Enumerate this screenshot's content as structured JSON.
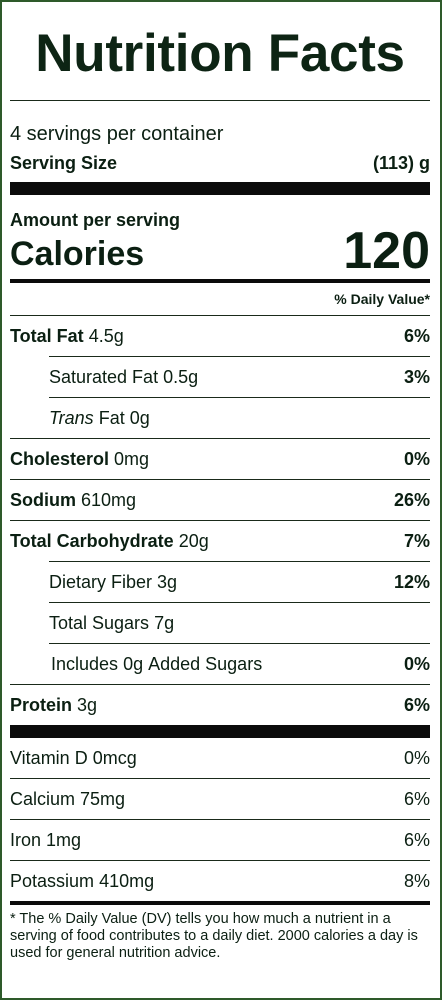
{
  "label": {
    "title": "Nutrition Facts",
    "servings_per_container": "4 servings per container",
    "serving_size_label": "Serving Size",
    "serving_size_value": "(113) g",
    "amount_per_serving": "Amount per serving",
    "calories_label": "Calories",
    "calories_value": "120",
    "daily_value_header": "% Daily Value*",
    "nutrients": {
      "total_fat": {
        "name": "Total Fat",
        "amount": "4.5g",
        "dv": "6%"
      },
      "saturated_fat": {
        "name": "Saturated Fat",
        "amount": "0.5g",
        "dv": "3%"
      },
      "trans_fat": {
        "name_italic": "Trans",
        "name": "Fat",
        "amount": "0g",
        "dv": ""
      },
      "cholesterol": {
        "name": "Cholesterol",
        "amount": "0mg",
        "dv": "0%"
      },
      "sodium": {
        "name": "Sodium",
        "amount": "610mg",
        "dv": "26%"
      },
      "total_carbohydrate": {
        "name": "Total Carbohydrate",
        "amount": "20g",
        "dv": "7%"
      },
      "dietary_fiber": {
        "name": "Dietary Fiber",
        "amount": "3g",
        "dv": "12%"
      },
      "total_sugars": {
        "name": "Total Sugars",
        "amount": "7g",
        "dv": ""
      },
      "added_sugars": {
        "prefix": "Includes",
        "amount": "0g",
        "suffix": "Added Sugars",
        "dv": "0%"
      },
      "protein": {
        "name": "Protein",
        "amount": "3g",
        "dv": "6%"
      }
    },
    "vitamins": {
      "vitamin_d": {
        "name": "Vitamin D",
        "amount": "0mcg",
        "dv": "0%"
      },
      "calcium": {
        "name": "Calcium",
        "amount": "75mg",
        "dv": "6%"
      },
      "iron": {
        "name": "Iron",
        "amount": "1mg",
        "dv": "6%"
      },
      "potassium": {
        "name": "Potassium",
        "amount": "410mg",
        "dv": "8%"
      }
    },
    "footnote": "* The % Daily Value (DV) tells you how much a nutrient in a serving of food contributes to a daily diet. 2000 calories a day is used for general nutrition advice."
  }
}
